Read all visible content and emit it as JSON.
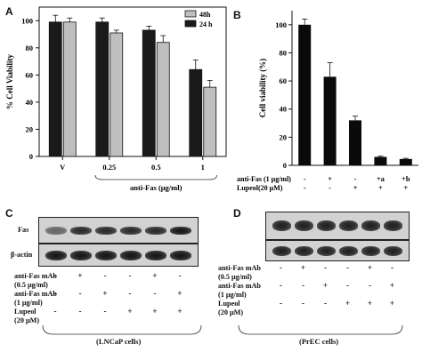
{
  "panels": {
    "a": "A",
    "b": "B",
    "c": "C",
    "d": "D"
  },
  "chart_data": [
    {
      "type": "bar",
      "title": "",
      "ylabel": "% Cell Viability",
      "xlabel": "anti-Fas (μg/ml)",
      "categories": [
        "V",
        "0.25",
        "0.5",
        "1"
      ],
      "yticks": [
        "0",
        "20",
        "40",
        "60",
        "80",
        "100"
      ],
      "ylim": [
        0,
        110
      ],
      "legend_position": "top-right",
      "series": [
        {
          "name": "24 h",
          "color": "#1a1a1a",
          "values": [
            99,
            99,
            93,
            64
          ],
          "errors": [
            5,
            3,
            3,
            7
          ]
        },
        {
          "name": "48h",
          "color": "#bfbfbf",
          "values": [
            99,
            91,
            84,
            51
          ],
          "errors": [
            3,
            2,
            5,
            5
          ]
        }
      ]
    },
    {
      "type": "bar",
      "title": "",
      "ylabel": "Cell viability (%)",
      "yticks": [
        "0",
        "20",
        "40",
        "60",
        "80",
        "100"
      ],
      "ylim": [
        0,
        110
      ],
      "values": [
        100,
        63,
        32,
        6,
        4.5
      ],
      "errors": [
        4,
        10,
        3,
        0.5,
        0.5
      ],
      "color": "#0a0a0a",
      "treatment_rows": [
        {
          "label": "anti-Fas (1 μg/ml)",
          "signs": [
            "-",
            "+",
            "-",
            "+a",
            "+b"
          ]
        },
        {
          "label": "Lupeol(20 μM)",
          "signs": [
            "-",
            "-",
            "+",
            "+",
            "+"
          ]
        }
      ]
    }
  ],
  "blot_c": {
    "labels": {
      "fas": "Fas",
      "actin": "β-actin"
    },
    "fas_intensity": [
      0.55,
      0.85,
      0.85,
      0.85,
      0.85,
      0.95
    ],
    "actin_intensity": [
      0.95,
      0.95,
      0.95,
      0.95,
      0.95,
      0.95
    ],
    "rows": [
      {
        "label": "anti-Fas mAb",
        "signs": [
          "-",
          "+",
          "-",
          "-",
          "+",
          "-"
        ]
      },
      {
        "label": "(0.5 μg/ml)",
        "signs": []
      },
      {
        "label": "anti-Fas mAb",
        "signs": [
          "-",
          "-",
          "+",
          "-",
          "-",
          "+"
        ]
      },
      {
        "label": "(1 μg/ml)",
        "signs": []
      },
      {
        "label": "Lupeol",
        "signs": [
          "-",
          "-",
          "-",
          "+",
          "+",
          "+"
        ]
      },
      {
        "label": "(20 μM)",
        "signs": []
      }
    ],
    "caption": "(LNCaP cells)"
  },
  "blot_d": {
    "fas_intensity": [
      0.9,
      0.9,
      0.9,
      0.9,
      0.9,
      0.9
    ],
    "actin_intensity": [
      0.9,
      0.9,
      0.9,
      0.9,
      0.9,
      0.9
    ],
    "rows": [
      {
        "label": "anti-Fas mAb",
        "signs": [
          "-",
          "+",
          "-",
          "-",
          "+",
          "-"
        ]
      },
      {
        "label": "(0.5 μg/ml)",
        "signs": []
      },
      {
        "label": "anti-Fas mAb",
        "signs": [
          "-",
          "-",
          "+",
          "-",
          "-",
          "+"
        ]
      },
      {
        "label": "(1 μg/ml)",
        "signs": []
      },
      {
        "label": "Lupeol",
        "signs": [
          "-",
          "-",
          "-",
          "+",
          "+",
          "+"
        ]
      },
      {
        "label": "(20 μM)",
        "signs": []
      }
    ],
    "caption": "(PrEC cells)"
  }
}
